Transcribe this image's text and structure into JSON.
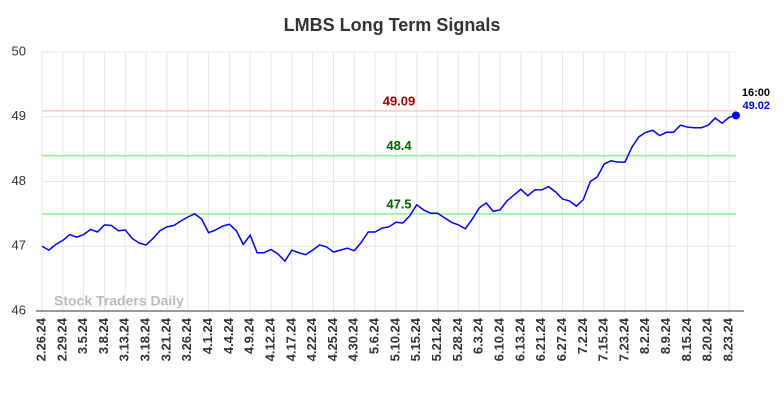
{
  "chart_data": {
    "type": "line",
    "title": "LMBS Long Term Signals",
    "categories": [
      "2.26.24",
      null,
      null,
      "2.29.24",
      null,
      null,
      "3.5.24",
      null,
      null,
      "3.8.24",
      null,
      null,
      "3.13.24",
      null,
      null,
      "3.18.24",
      null,
      null,
      "3.21.24",
      null,
      null,
      "3.26.24",
      null,
      null,
      "4.1.24",
      null,
      null,
      "4.4.24",
      null,
      null,
      "4.9.24",
      null,
      null,
      "4.12.24",
      null,
      null,
      "4.17.24",
      null,
      null,
      "4.22.24",
      null,
      null,
      "4.25.24",
      null,
      null,
      "4.30.24",
      null,
      null,
      "5.6.24",
      null,
      null,
      "5.10.24",
      null,
      null,
      "5.15.24",
      null,
      null,
      "5.21.24",
      null,
      null,
      "5.28.24",
      null,
      null,
      "6.3.24",
      null,
      null,
      "6.10.24",
      null,
      null,
      "6.13.24",
      null,
      null,
      "6.21.24",
      null,
      null,
      "6.27.24",
      null,
      null,
      "7.2.24",
      null,
      null,
      "7.15.24",
      null,
      null,
      "7.23.24",
      null,
      null,
      "8.2.24",
      null,
      null,
      "8.9.24",
      null,
      null,
      "8.15.24",
      null,
      null,
      "8.20.24",
      null,
      null,
      "8.23.24",
      null
    ],
    "series": [
      {
        "name": "LMBS",
        "color": "#0000ff",
        "values": [
          47.0,
          46.94,
          47.03,
          47.09,
          47.18,
          47.14,
          47.18,
          47.26,
          47.22,
          47.33,
          47.32,
          47.24,
          47.25,
          47.12,
          47.05,
          47.02,
          47.12,
          47.24,
          47.3,
          47.32,
          47.39,
          47.45,
          47.5,
          47.42,
          47.21,
          47.25,
          47.31,
          47.34,
          47.24,
          47.03,
          47.17,
          46.9,
          46.9,
          46.95,
          46.88,
          46.77,
          46.94,
          46.9,
          46.87,
          46.94,
          47.02,
          46.99,
          46.91,
          46.94,
          46.97,
          46.93,
          47.06,
          47.22,
          47.22,
          47.28,
          47.3,
          47.37,
          47.36,
          47.47,
          47.64,
          47.56,
          47.51,
          47.51,
          47.44,
          47.37,
          47.33,
          47.27,
          47.42,
          47.59,
          47.67,
          47.54,
          47.56,
          47.7,
          47.79,
          47.88,
          47.78,
          47.87,
          47.87,
          47.92,
          47.84,
          47.73,
          47.7,
          47.62,
          47.72,
          48.0,
          48.07,
          48.27,
          48.32,
          48.3,
          48.3,
          48.53,
          48.69,
          48.76,
          48.79,
          48.71,
          48.76,
          48.76,
          48.87,
          48.84,
          48.83,
          48.83,
          48.87,
          48.98,
          48.9,
          48.99,
          49.02
        ]
      }
    ],
    "ylim": [
      46,
      50
    ],
    "yticks": [
      46,
      47,
      48,
      49,
      50
    ],
    "grid": true,
    "reference_lines": [
      {
        "value": 49.09,
        "color": "#ffc8c8",
        "label_color": "#990000"
      },
      {
        "value": 48.4,
        "color": "#90ee90",
        "label_color": "#006400"
      },
      {
        "value": 47.5,
        "color": "#90ee90",
        "label_color": "#006400"
      }
    ],
    "last_point_time": "16:00",
    "watermark": "Stock Traders Daily"
  }
}
